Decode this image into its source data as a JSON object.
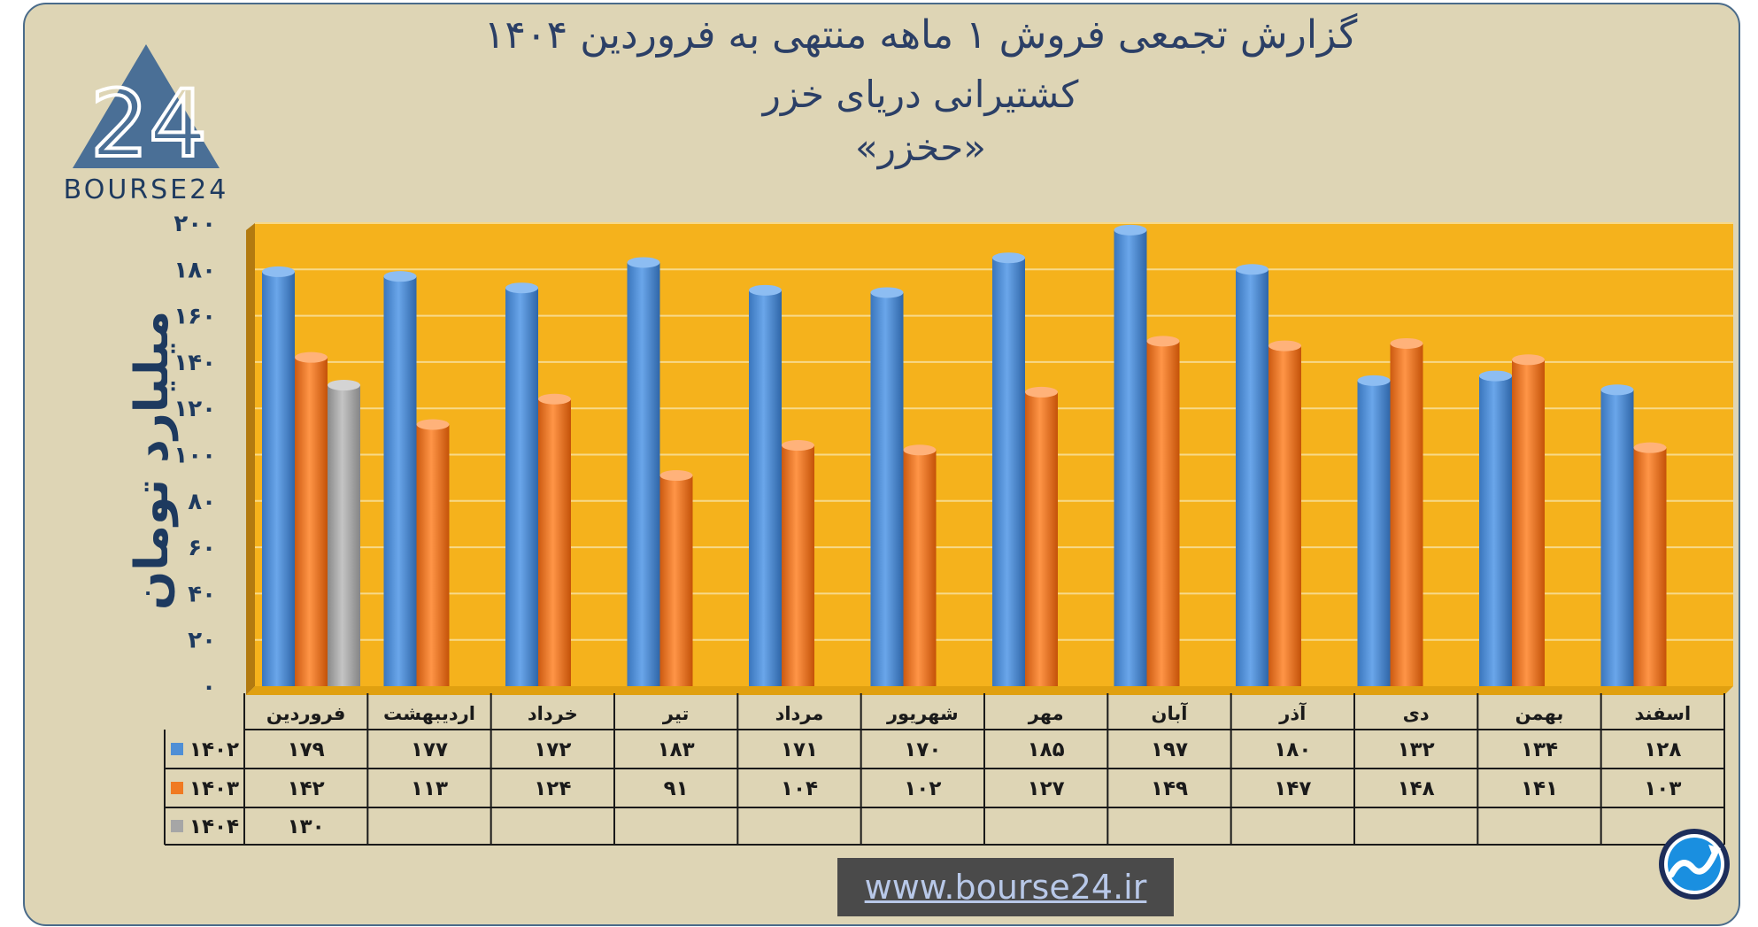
{
  "title": {
    "line1": "گزارش تجمعی فروش ۱ ماهه منتهی به فروردین ۱۴۰۴",
    "line2": "کشتیرانی دریای خزر",
    "line3": "«حخزر»"
  },
  "logo": {
    "text": "BOURSE24",
    "mark": "24"
  },
  "website": "www.bourse24.ir",
  "colors": {
    "s1402": "#4f8fd6",
    "s1403": "#f07a22",
    "s1404": "#a6a6a6",
    "plot_bg": "#f5b21c",
    "title": "#2b3f66"
  },
  "icons": [
    "bourse24-triangle-logo",
    "trend-arrow-icon"
  ],
  "chart_data": {
    "type": "bar",
    "ylabel": "میلیارد تومان",
    "ylim": [
      0,
      200
    ],
    "y_ticks": [
      "۰",
      "۲۰",
      "۴۰",
      "۶۰",
      "۸۰",
      "۱۰۰",
      "۱۲۰",
      "۱۴۰",
      "۱۶۰",
      "۱۸۰",
      "۲۰۰"
    ],
    "categories": [
      "فروردین",
      "اردیبهشت",
      "خرداد",
      "تیر",
      "مرداد",
      "شهریور",
      "مهر",
      "آبان",
      "آذر",
      "دی",
      "بهمن",
      "اسفند"
    ],
    "series": [
      {
        "name": "۱۴۰۲",
        "values": [
          179,
          177,
          172,
          183,
          171,
          170,
          185,
          197,
          180,
          132,
          134,
          128
        ],
        "labels": [
          "۱۷۹",
          "۱۷۷",
          "۱۷۲",
          "۱۸۳",
          "۱۷۱",
          "۱۷۰",
          "۱۸۵",
          "۱۹۷",
          "۱۸۰",
          "۱۳۲",
          "۱۳۴",
          "۱۲۸"
        ]
      },
      {
        "name": "۱۴۰۳",
        "values": [
          142,
          113,
          124,
          91,
          104,
          102,
          127,
          149,
          147,
          148,
          141,
          103
        ],
        "labels": [
          "۱۴۲",
          "۱۱۳",
          "۱۲۴",
          "۹۱",
          "۱۰۴",
          "۱۰۲",
          "۱۲۷",
          "۱۴۹",
          "۱۴۷",
          "۱۴۸",
          "۱۴۱",
          "۱۰۳"
        ]
      },
      {
        "name": "۱۴۰۴",
        "values": [
          130,
          null,
          null,
          null,
          null,
          null,
          null,
          null,
          null,
          null,
          null,
          null
        ],
        "labels": [
          "۱۳۰",
          "",
          "",
          "",
          "",
          "",
          "",
          "",
          "",
          "",
          "",
          ""
        ]
      }
    ],
    "grid": true,
    "legend": "data-table"
  }
}
